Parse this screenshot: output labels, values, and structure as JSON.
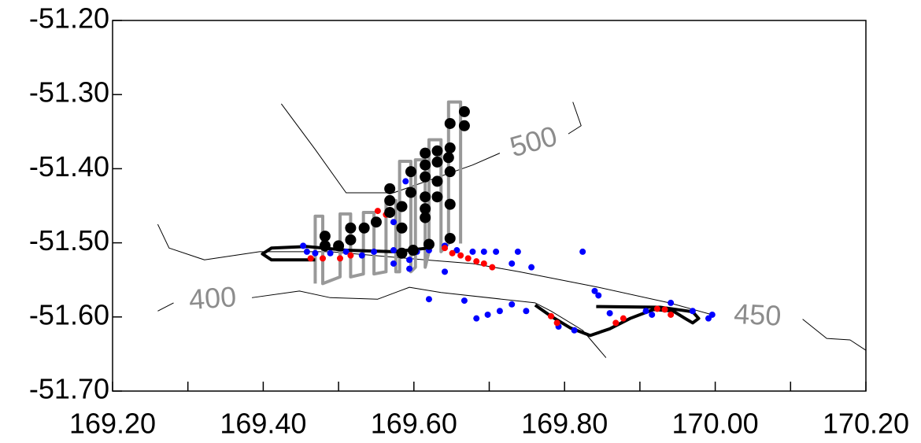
{
  "chart_data": {
    "type": "scatter",
    "xlim": [
      169.2,
      170.2
    ],
    "ylim": [
      -51.7,
      -51.2
    ],
    "xticks": [
      {
        "value": 169.2,
        "label": "169.20"
      },
      {
        "value": 169.4,
        "label": "169.40"
      },
      {
        "value": 169.6,
        "label": "169.60"
      },
      {
        "value": 169.8,
        "label": "169.80"
      },
      {
        "value": 170.0,
        "label": "170.00"
      },
      {
        "value": 170.2,
        "label": "170.20"
      }
    ],
    "xminorticks": [
      169.3,
      169.5,
      169.7,
      169.9,
      170.1
    ],
    "yticks": [
      {
        "value": -51.7,
        "label": "-51.70"
      },
      {
        "value": -51.6,
        "label": "-51.60"
      },
      {
        "value": -51.5,
        "label": "-51.50"
      },
      {
        "value": -51.4,
        "label": "-51.40"
      },
      {
        "value": -51.3,
        "label": "-51.30"
      },
      {
        "value": -51.2,
        "label": "-51.20"
      }
    ],
    "contours": [
      {
        "level": 500,
        "color": "#000000",
        "label_color": "#8c8c8c",
        "x": [
          169.424,
          169.469,
          169.51,
          169.573,
          169.678,
          169.714,
          null,
          169.805,
          169.822,
          169.811
        ],
        "y": [
          -51.3125,
          -51.374,
          -51.4325,
          -51.4325,
          -51.395,
          -51.379,
          null,
          -51.353,
          -51.342,
          -51.31
        ]
      },
      {
        "level": 450,
        "color": "#000000",
        "label_color": "#8c8c8c",
        "x": [
          169.26,
          169.275,
          169.322,
          169.395,
          169.489,
          169.615,
          169.678,
          169.74,
          169.845,
          169.939,
          169.996,
          null,
          170.116,
          170.148,
          170.179,
          170.2
        ],
        "y": [
          -51.475,
          -51.507,
          -51.523,
          -51.512,
          -51.512,
          -51.523,
          -51.528,
          -51.539,
          -51.56,
          -51.581,
          -51.597,
          null,
          -51.603,
          -51.629,
          -51.631,
          -51.645
        ]
      },
      {
        "level": 400,
        "color": "#000000",
        "label_color": "#8c8c8c",
        "x": [
          169.26,
          169.281,
          null,
          169.385,
          169.448,
          169.489,
          169.552,
          169.594,
          169.636,
          169.761,
          169.782,
          169.824,
          169.855
        ],
        "y": [
          -51.592,
          -51.581,
          null,
          -51.574,
          -51.565,
          -51.574,
          -51.576,
          -51.56,
          -51.567,
          -51.581,
          -51.592,
          -51.618,
          -51.655
        ]
      }
    ],
    "series": [
      {
        "kind": "line",
        "color": "#999999",
        "x": [
          169.469,
          169.469,
          169.479,
          169.479,
          169.502,
          169.502,
          169.516,
          169.516,
          169.533,
          169.533,
          169.547,
          169.547,
          169.563,
          169.563,
          169.576,
          169.576,
          169.581,
          169.581,
          169.596,
          169.596,
          169.602,
          169.602,
          169.615,
          169.615,
          169.62,
          169.62,
          169.636,
          169.636,
          169.646,
          169.646,
          169.662,
          169.662
        ],
        "y": [
          -51.555,
          -51.464,
          -51.464,
          -51.555,
          -51.546,
          -51.461,
          -51.461,
          -51.546,
          -51.542,
          -51.459,
          -51.459,
          -51.542,
          -51.539,
          -51.443,
          -51.443,
          -51.539,
          -51.539,
          -51.39,
          -51.39,
          -51.539,
          -51.533,
          -51.388,
          -51.388,
          -51.533,
          -51.512,
          -51.361,
          -51.361,
          -51.512,
          -51.501,
          -51.31,
          -51.31,
          -51.501
        ]
      },
      {
        "kind": "line",
        "color": "#000000",
        "x": [
          169.469,
          169.411,
          169.399,
          169.411,
          169.458,
          169.51,
          169.573,
          169.62,
          null,
          169.761,
          169.782,
          169.808,
          169.834,
          169.86,
          169.887,
          169.918,
          169.944,
          169.96,
          169.97,
          169.978,
          169.97,
          169.928,
          169.842
        ],
        "y": [
          -51.523,
          -51.523,
          -51.515,
          -51.507,
          -51.505,
          -51.51,
          -51.512,
          -51.507,
          null,
          -51.584,
          -51.599,
          -51.615,
          -51.625,
          -51.616,
          -51.602,
          -51.59,
          -51.592,
          -51.602,
          -51.608,
          -51.602,
          -51.593,
          -51.587,
          -51.586
        ]
      },
      {
        "kind": "points",
        "color": "#0000ff",
        "x": [
          169.453,
          169.458,
          169.469,
          169.489,
          169.51,
          169.531,
          169.547,
          169.573,
          169.594,
          169.604,
          169.62,
          169.641,
          169.657,
          169.678,
          169.693,
          169.709,
          169.738,
          169.73,
          169.756,
          169.641,
          169.594,
          169.573,
          169.589,
          169.573,
          169.824,
          169.62,
          169.667,
          169.683,
          169.698,
          169.714,
          169.73,
          169.749,
          169.792,
          169.813,
          169.84,
          169.845,
          169.86,
          169.908,
          169.941,
          169.97,
          169.996,
          169.991,
          169.916
        ],
        "y": [
          -51.504,
          -51.512,
          -51.514,
          -51.514,
          -51.512,
          -51.517,
          -51.512,
          -51.51,
          -51.523,
          -51.512,
          -51.51,
          -51.504,
          -51.51,
          -51.512,
          -51.512,
          -51.512,
          -51.512,
          -51.528,
          -51.533,
          -51.539,
          -51.535,
          -51.528,
          -51.417,
          -51.472,
          -51.512,
          -51.576,
          -51.578,
          -51.602,
          -51.597,
          -51.592,
          -51.583,
          -51.592,
          -51.613,
          -51.618,
          -51.565,
          -51.571,
          -51.595,
          -51.592,
          -51.581,
          -51.592,
          -51.597,
          -51.602,
          -51.597
        ]
      },
      {
        "kind": "points",
        "color": "#ff0000",
        "x": [
          169.552,
          169.563,
          169.502,
          169.516,
          169.651,
          169.662,
          169.672,
          169.683,
          169.693,
          169.704,
          169.641,
          169.782,
          169.79,
          169.868,
          169.878,
          169.923,
          169.933,
          169.941,
          169.463,
          169.479
        ],
        "y": [
          -51.457,
          -51.462,
          -51.521,
          -51.517,
          -51.514,
          -51.517,
          -51.521,
          -51.525,
          -51.528,
          -51.533,
          -51.507,
          -51.599,
          -51.608,
          -51.608,
          -51.602,
          -51.589,
          -51.59,
          -51.597,
          -51.521,
          -51.521
        ]
      },
      {
        "kind": "points",
        "color": "#000000",
        "large": true,
        "x": [
          169.667,
          169.667,
          169.648,
          169.648,
          169.646,
          169.631,
          169.631,
          169.615,
          169.615,
          169.615,
          169.596,
          169.596,
          169.615,
          169.615,
          169.615,
          169.631,
          169.631,
          169.648,
          169.648,
          169.648,
          169.568,
          169.568,
          169.568,
          169.584,
          169.584,
          169.55,
          169.534,
          169.516,
          169.516,
          169.5,
          169.482,
          169.482,
          169.584,
          169.599,
          169.62
        ],
        "y": [
          -51.323,
          -51.342,
          -51.339,
          -51.372,
          -51.385,
          -51.376,
          -51.391,
          -51.379,
          -51.395,
          -51.411,
          -51.404,
          -51.432,
          -51.438,
          -51.454,
          -51.466,
          -51.417,
          -51.438,
          -51.404,
          -51.448,
          -51.494,
          -51.427,
          -51.443,
          -51.459,
          -51.451,
          -51.48,
          -51.472,
          -51.48,
          -51.48,
          -51.496,
          -51.504,
          -51.491,
          -51.504,
          -51.514,
          -51.51,
          -51.502
        ]
      }
    ]
  }
}
